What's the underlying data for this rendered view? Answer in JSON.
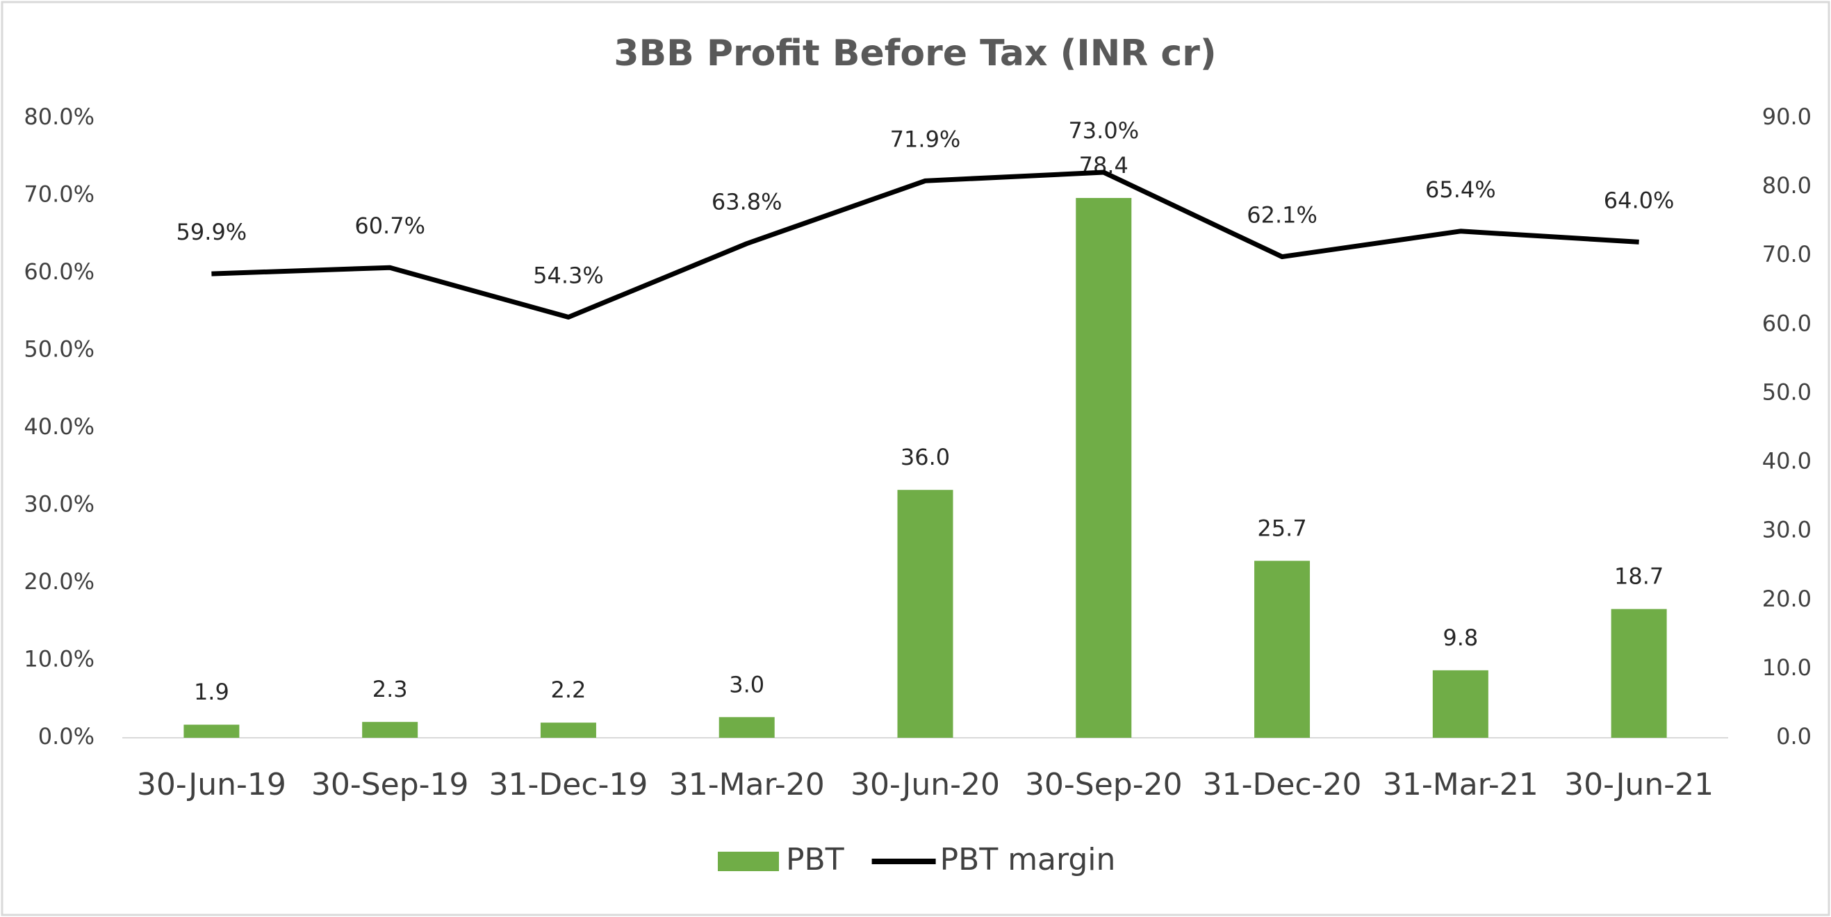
{
  "chart_data": {
    "type": "bar-line",
    "title": "3BB Profit Before Tax (INR cr)",
    "categories": [
      "30-Jun-19",
      "30-Sep-19",
      "31-Dec-19",
      "31-Mar-20",
      "30-Jun-20",
      "30-Sep-20",
      "31-Dec-20",
      "31-Mar-21",
      "30-Jun-21"
    ],
    "series": [
      {
        "name": "PBT",
        "type": "bar",
        "axis": "y2",
        "color": "#70ad47",
        "values": [
          1.9,
          2.3,
          2.2,
          3.0,
          36.0,
          78.4,
          25.7,
          9.8,
          18.7
        ],
        "value_labels": [
          "1.9",
          "2.3",
          "2.2",
          "3.0",
          "36.0",
          "78.4",
          "25.7",
          "9.8",
          "18.7"
        ]
      },
      {
        "name": "PBT margin",
        "type": "line",
        "axis": "y",
        "color": "#000000",
        "values": [
          59.9,
          60.7,
          54.3,
          63.8,
          71.9,
          73.0,
          62.1,
          65.4,
          64.0
        ],
        "value_labels": [
          "59.9%",
          "60.7%",
          "54.3%",
          "63.8%",
          "71.9%",
          "73.0%",
          "62.1%",
          "65.4%",
          "64.0%"
        ]
      }
    ],
    "ylim": [
      0,
      80
    ],
    "yticks": [
      {
        "value": 0,
        "label": "0.0%"
      },
      {
        "value": 10,
        "label": "10.0%"
      },
      {
        "value": 20,
        "label": "20.0%"
      },
      {
        "value": 30,
        "label": "30.0%"
      },
      {
        "value": 40,
        "label": "40.0%"
      },
      {
        "value": 50,
        "label": "50.0%"
      },
      {
        "value": 60,
        "label": "60.0%"
      },
      {
        "value": 70,
        "label": "70.0%"
      },
      {
        "value": 80,
        "label": "80.0%"
      }
    ],
    "y2lim": [
      0,
      90
    ],
    "y2ticks": [
      {
        "value": 0,
        "label": "0.0"
      },
      {
        "value": 10,
        "label": "10.0"
      },
      {
        "value": 20,
        "label": "20.0"
      },
      {
        "value": 30,
        "label": "30.0"
      },
      {
        "value": 40,
        "label": "40.0"
      },
      {
        "value": 50,
        "label": "50.0"
      },
      {
        "value": 60,
        "label": "60.0"
      },
      {
        "value": 70,
        "label": "70.0"
      },
      {
        "value": 80,
        "label": "80.0"
      },
      {
        "value": 90,
        "label": "90.0"
      }
    ],
    "legend": "bottom"
  }
}
